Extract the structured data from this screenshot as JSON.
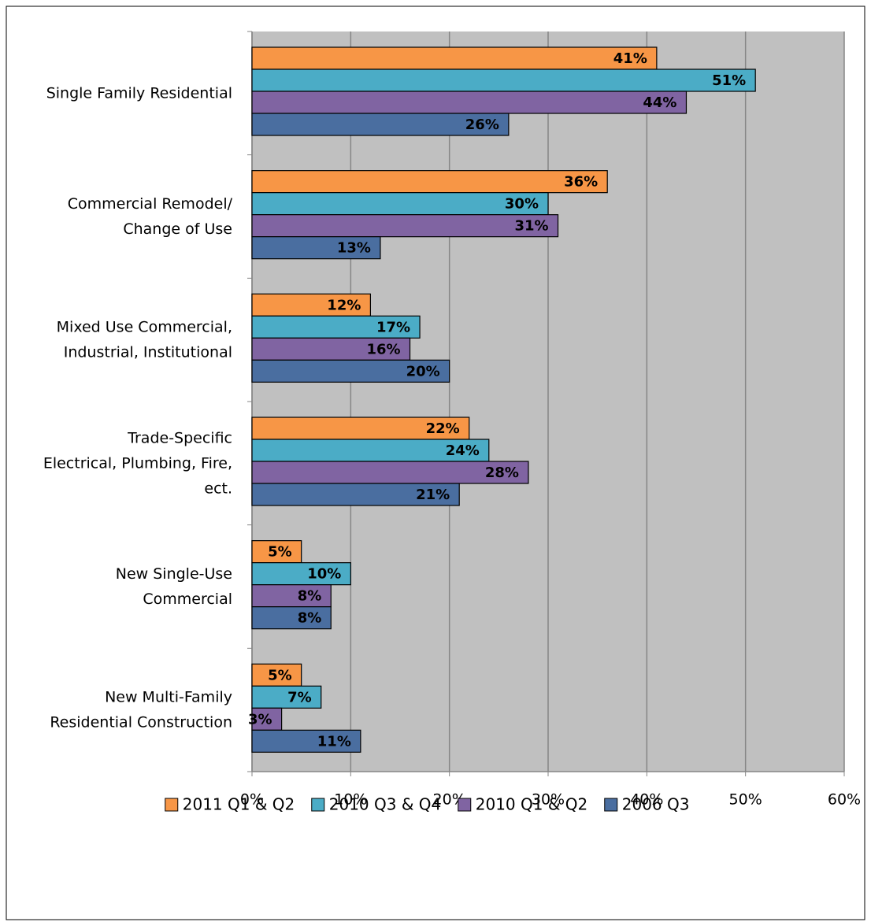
{
  "chart_data": {
    "type": "hbar",
    "categories": [
      "Single Family Residential",
      "Commercial Remodel/\nChange of Use",
      "Mixed Use Commercial,\nIndustrial, Institutional",
      "Trade-Specific\nElectrical, Plumbing, Fire,\nect.",
      "New Single-Use\nCommercial",
      "New Multi-Family\nResidential Construction"
    ],
    "series": [
      {
        "name": "2011 Q1 & Q2",
        "color": "#f79646",
        "label_color": "#000000",
        "values": [
          41,
          36,
          12,
          22,
          5,
          5
        ],
        "value_labels": [
          "41%",
          "36%",
          "12%",
          "22%",
          "5%",
          "5%"
        ]
      },
      {
        "name": "2010 Q3 & Q4",
        "color": "#4bacc6",
        "label_color": "#000000",
        "values": [
          51,
          30,
          17,
          24,
          10,
          7
        ],
        "value_labels": [
          "51%",
          "30%",
          "17%",
          "24%",
          "10%",
          "7%"
        ]
      },
      {
        "name": "2010 Q1 & Q2",
        "color": "#8064a2",
        "label_color": "#ffffff",
        "values": [
          44,
          31,
          16,
          28,
          8,
          3
        ],
        "value_labels": [
          "44%",
          "31%",
          "16%",
          "28%",
          "8%",
          "3%"
        ]
      },
      {
        "name": "2006 Q3",
        "color": "#4a6ea0",
        "label_color": "#ffffff",
        "values": [
          26,
          13,
          20,
          21,
          8,
          11
        ],
        "value_labels": [
          "26%",
          "13%",
          "20%",
          "21%",
          "8%",
          "11%"
        ]
      }
    ],
    "xlim": [
      0,
      60
    ],
    "xticks": [
      {
        "value": 0,
        "label": "0%"
      },
      {
        "value": 10,
        "label": "10%"
      },
      {
        "value": 20,
        "label": "20%"
      },
      {
        "value": 30,
        "label": "30%"
      },
      {
        "value": 40,
        "label": "40%"
      },
      {
        "value": 50,
        "label": "50%"
      },
      {
        "value": 60,
        "label": "60%"
      }
    ],
    "grid": true,
    "legend": "bottom"
  }
}
